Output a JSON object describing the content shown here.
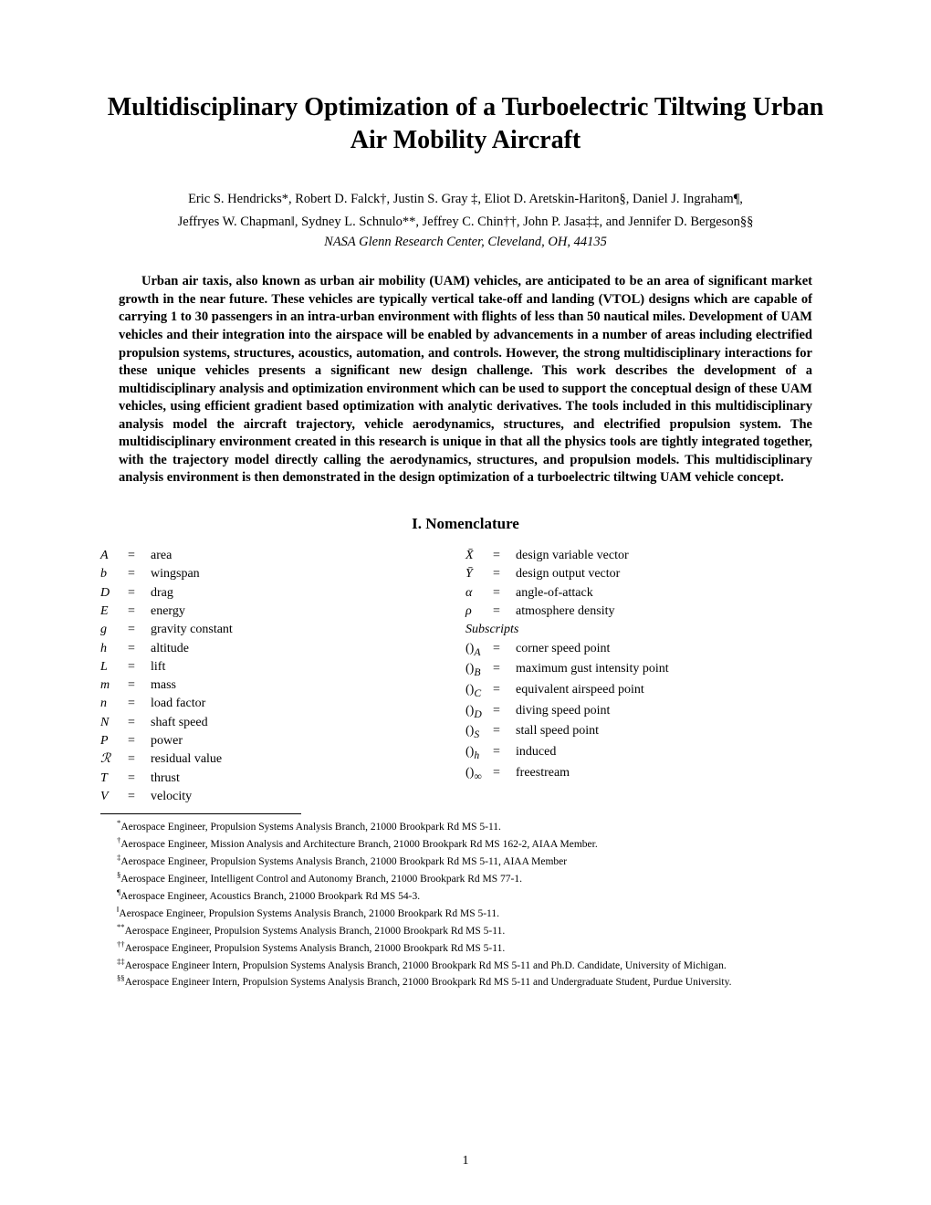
{
  "title": "Multidisciplinary Optimization of a Turboelectric Tiltwing Urban Air Mobility Aircraft",
  "authors_line1": "Eric S. Hendricks*, Robert D. Falck†, Justin S. Gray ‡, Eliot D. Aretskin-Hariton§, Daniel J. Ingraham¶,",
  "authors_line2": "Jeffryes W. Chapman‖, Sydney L. Schnulo**, Jeffrey C. Chin††, John P. Jasa‡‡, and Jennifer D. Bergeson§§",
  "affiliation": "NASA Glenn Research Center, Cleveland, OH, 44135",
  "abstract": "Urban air taxis, also known as urban air mobility (UAM) vehicles, are anticipated to be an area of significant market growth in the near future. These vehicles are typically vertical take-off and landing (VTOL) designs which are capable of carrying 1 to 30 passengers in an intra-urban environment with flights of less than 50 nautical miles. Development of UAM vehicles and their integration into the airspace will be enabled by advancements in a number of areas including electrified propulsion systems, structures, acoustics, automation, and controls. However, the strong multidisciplinary interactions for these unique vehicles presents a significant new design challenge. This work describes the development of a multidisciplinary analysis and optimization environment which can be used to support the conceptual design of these UAM vehicles, using efficient gradient based optimization with analytic derivatives. The tools included in this multidisciplinary analysis model the aircraft trajectory, vehicle aerodynamics, structures, and electrified propulsion system. The multidisciplinary environment created in this research is unique in that all the physics tools are tightly integrated together, with the trajectory model directly calling the aerodynamics, structures, and propulsion models. This multidisciplinary analysis environment is then demonstrated in the design optimization of a turboelectric tiltwing UAM vehicle concept.",
  "section_nomenclature": "I. Nomenclature",
  "nomenclature_left": [
    {
      "sym": "A",
      "def": "area"
    },
    {
      "sym": "b",
      "def": "wingspan"
    },
    {
      "sym": "D",
      "def": "drag"
    },
    {
      "sym": "E",
      "def": "energy"
    },
    {
      "sym": "g",
      "def": "gravity constant"
    },
    {
      "sym": "h",
      "def": "altitude"
    },
    {
      "sym": "L",
      "def": "lift"
    },
    {
      "sym": "m",
      "def": "mass"
    },
    {
      "sym": "n",
      "def": "load factor"
    },
    {
      "sym": "N",
      "def": "shaft speed"
    },
    {
      "sym": "P",
      "def": "power"
    },
    {
      "sym": "ℛ",
      "def": "residual value"
    },
    {
      "sym": "T",
      "def": "thrust"
    },
    {
      "sym": "V",
      "def": "velocity"
    }
  ],
  "nomenclature_right": [
    {
      "sym": "X̄",
      "def": "design variable vector"
    },
    {
      "sym": "Ȳ",
      "def": "design output vector"
    },
    {
      "sym": "α",
      "def": "angle-of-attack"
    },
    {
      "sym": "ρ",
      "def": "atmosphere density"
    }
  ],
  "subscripts_label": "Subscripts",
  "subscripts": [
    {
      "sym": "()ₐ",
      "sub": "A",
      "def": "corner speed point"
    },
    {
      "sym": "()",
      "sub": "B",
      "def": "maximum gust intensity point"
    },
    {
      "sym": "()",
      "sub": "C",
      "def": "equivalent airspeed point"
    },
    {
      "sym": "()",
      "sub": "D",
      "def": "diving speed point"
    },
    {
      "sym": "()",
      "sub": "S",
      "def": "stall speed point"
    },
    {
      "sym": "()",
      "sub": "h",
      "def": "induced"
    },
    {
      "sym": "()",
      "sub": "∞",
      "def": "freestream"
    }
  ],
  "footnotes": [
    {
      "mark": "*",
      "text": "Aerospace Engineer, Propulsion Systems Analysis Branch, 21000 Brookpark Rd MS 5-11."
    },
    {
      "mark": "†",
      "text": "Aerospace Engineer, Mission Analysis and Architecture Branch, 21000 Brookpark Rd MS 162-2, AIAA Member."
    },
    {
      "mark": "‡",
      "text": "Aerospace Engineer, Propulsion Systems Analysis Branch, 21000 Brookpark Rd MS 5-11, AIAA Member"
    },
    {
      "mark": "§",
      "text": "Aerospace Engineer, Intelligent Control and Autonomy Branch, 21000 Brookpark Rd MS 77-1."
    },
    {
      "mark": "¶",
      "text": "Aerospace Engineer, Acoustics Branch, 21000 Brookpark Rd MS 54-3."
    },
    {
      "mark": "‖",
      "text": "Aerospace Engineer, Propulsion Systems Analysis Branch, 21000 Brookpark Rd MS 5-11."
    },
    {
      "mark": "**",
      "text": "Aerospace Engineer, Propulsion Systems Analysis Branch, 21000 Brookpark Rd MS 5-11."
    },
    {
      "mark": "††",
      "text": "Aerospace Engineer, Propulsion Systems Analysis Branch, 21000 Brookpark Rd MS 5-11."
    },
    {
      "mark": "‡‡",
      "text": "Aerospace Engineer Intern, Propulsion Systems Analysis Branch, 21000 Brookpark Rd MS 5-11 and Ph.D. Candidate, University of Michigan."
    },
    {
      "mark": "§§",
      "text": "Aerospace Engineer Intern, Propulsion Systems Analysis Branch, 21000 Brookpark Rd MS 5-11 and Undergraduate Student, Purdue University."
    }
  ],
  "page_number": "1"
}
